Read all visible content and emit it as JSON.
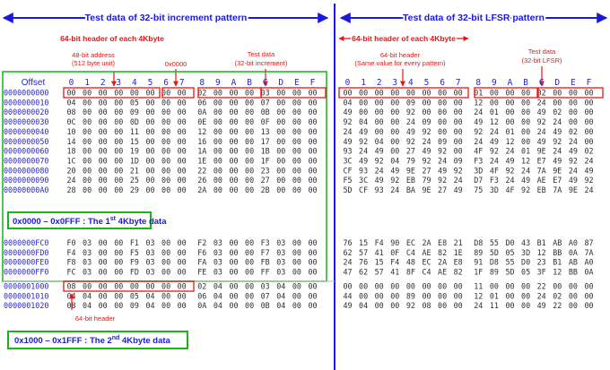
{
  "titles": {
    "left": "Test data of 32-bit increment pattern",
    "right": "Test data of 32-bit LFSR pattern"
  },
  "annotations": {
    "left_header": "64-bit header of each 4Kbyte",
    "right_header": "64-bit header of each 4Kbyte",
    "addr48_line1": "48-bit address",
    "addr48_line2": "(512 byte unit)",
    "zero": "0x0000",
    "test_inc_line1": "Test data",
    "test_inc_line2": "(32-bit increment)",
    "hdr_same_line1": "64-bit header",
    "hdr_same_line2": "(Same value for every pattern)",
    "test_lfsr_line1": "Test data",
    "test_lfsr_line2": "(32-bit LFSR)",
    "bottom_header": "64-bit header"
  },
  "boxes": {
    "first": "0x0000 – 0x0FFF : The 1st 4Kbyte data",
    "second": "0x1000 – 0x1FFF : The 2nd 4Kbyte data"
  },
  "hex_header": {
    "offset": "Offset",
    "columns": [
      "0",
      "1",
      "2",
      "3",
      "4",
      "5",
      "6",
      "7",
      "8",
      "9",
      "A",
      "B",
      "C",
      "D",
      "E",
      "F"
    ]
  },
  "offsets_top": [
    "0000000000",
    "0000000010",
    "0000000020",
    "0000000030",
    "0000000040",
    "0000000050",
    "0000000060",
    "0000000070",
    "0000000080",
    "0000000090",
    "00000000A0"
  ],
  "offsets_mid": [
    "0000000FC0",
    "0000000FD0",
    "0000000FE0",
    "0000000FF0"
  ],
  "offsets_bot": [
    "0000001000",
    "0000001010",
    "0000001020"
  ],
  "left_top": [
    "00 00 00 00 00 00 00 00 02 00 00 00 03 00 00 00",
    "04 00 00 00 05 00 00 00 06 00 00 00 07 00 00 00",
    "08 00 00 00 09 00 00 00 0A 00 00 00 0B 00 00 00",
    "0C 00 00 00 0D 00 00 00 0E 00 00 00 0F 00 00 00",
    "10 00 00 00 11 00 00 00 12 00 00 00 13 00 00 00",
    "14 00 00 00 15 00 00 00 16 00 00 00 17 00 00 00",
    "18 00 00 00 19 00 00 00 1A 00 00 00 1B 00 00 00",
    "1C 00 00 00 1D 00 00 00 1E 00 00 00 1F 00 00 00",
    "20 00 00 00 21 00 00 00 22 00 00 00 23 00 00 00",
    "24 00 00 00 25 00 00 00 26 00 00 00 27 00 00 00",
    "28 00 00 00 29 00 00 00 2A 00 00 00 2B 00 00 00"
  ],
  "left_mid": [
    "F0 03 00 00 F1 03 00 00 F2 03 00 00 F3 03 00 00",
    "F4 03 00 00 F5 03 00 00 F6 03 00 00 F7 03 00 00",
    "F8 03 00 00 F9 03 00 00 FA 03 00 00 FB 03 00 00",
    "FC 03 00 00 FD 03 00 00 FE 03 00 00 FF 03 00 00"
  ],
  "left_bot": [
    "08 00 00 00 00 00 00 00 02 04 00 00 03 04 00 00",
    "04 04 00 00 05 04 00 00 06 04 00 00 07 04 00 00",
    "08 04 00 00 09 04 00 00 0A 04 00 00 0B 04 00 00"
  ],
  "right_top": [
    "00 00 00 00 00 00 00 00 01 00 00 00 02 00 00 00",
    "04 00 00 00 09 00 00 00 12 00 00 00 24 00 00 00",
    "49 00 00 00 92 00 00 00 24 01 00 00 49 02 00 00",
    "92 04 00 00 24 09 00 00 49 12 00 00 92 24 00 00",
    "24 49 00 00 49 92 00 00 92 24 01 00 24 49 02 00",
    "49 92 04 00 92 24 09 00 24 49 12 00 49 92 24 00",
    "93 24 49 00 27 49 92 00 4F 92 24 01 9E 24 49 02",
    "3C 49 92 04 79 92 24 09 F3 24 49 12 E7 49 92 24",
    "CF 93 24 49 9E 27 49 92 3D 4F 92 24 7A 9E 24 49",
    "F5 3C 49 92 EB 79 92 24 D7 F3 24 49 AE E7 49 92",
    "5D CF 93 24 BA 9E 27 49 75 3D 4F 92 EB 7A 9E 24"
  ],
  "right_mid": [
    "76 15 F4 90 EC 2A E8 21 D8 55 D0 43 B1 AB A0 87",
    "62 57 41 0F C4 AE 82 1E 89 5D 05 3D 12 BB 0A 7A",
    "24 76 15 F4 48 EC 2A E8 91 D8 55 D0 23 B1 AB A0",
    "47 62 57 41 8F C4 AE 82 1F 89 5D 05 3F 12 BB 0A"
  ],
  "right_bot": [
    "00 00 00 00 00 00 00 00 11 00 00 00 22 00 00 00",
    "44 00 00 00 89 00 00 00 12 01 00 00 24 02 00 00",
    "49 04 00 00 92 08 00 00 24 11 00 00 49 22 00 00"
  ],
  "colors": {
    "title_blue": "#1a1ad8",
    "offset_blue": "#2a28c8",
    "highlight_red": "#e01818",
    "box_green": "#18b418",
    "hex_black": "#303030"
  }
}
